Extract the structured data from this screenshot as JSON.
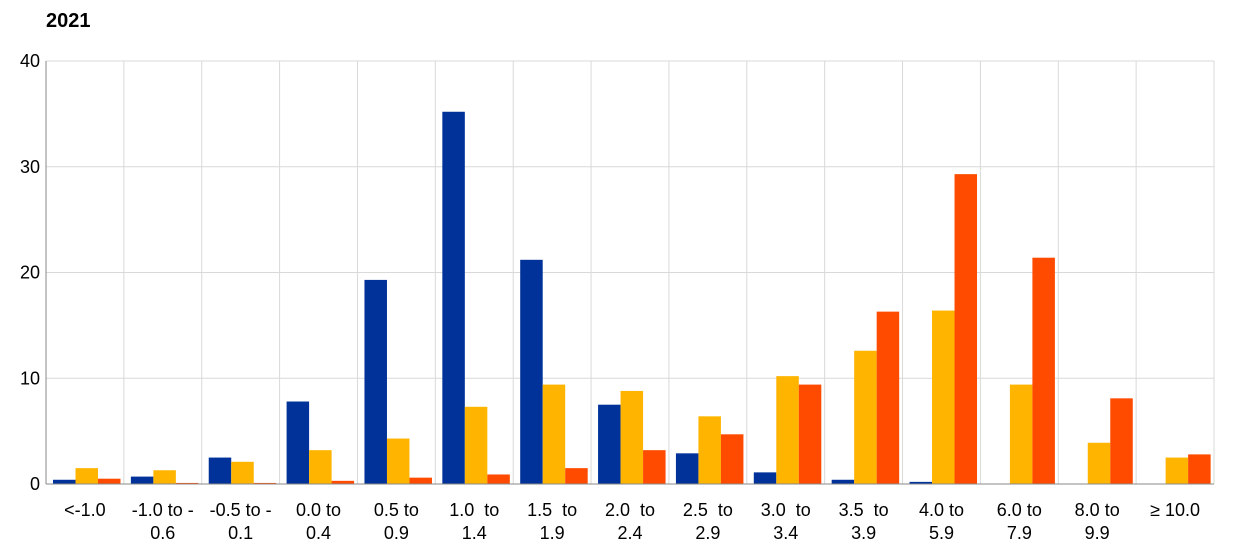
{
  "chart_data": {
    "type": "bar",
    "title": "2021",
    "xlabel": "",
    "ylabel": "",
    "ylim": [
      0,
      40
    ],
    "yticks": [
      "0",
      "10",
      "20",
      "30",
      "40"
    ],
    "grid": true,
    "legend": "none",
    "categories": [
      [
        "<-1.0"
      ],
      [
        "-1.0 to -",
        "0.6"
      ],
      [
        "-0.5 to -",
        "0.1"
      ],
      [
        "0.0 to",
        "0.4"
      ],
      [
        "0.5 to",
        "0.9"
      ],
      [
        "1.0  to",
        "1.4"
      ],
      [
        "1.5  to",
        "1.9"
      ],
      [
        "2.0  to",
        "2.4"
      ],
      [
        "2.5  to",
        "2.9"
      ],
      [
        "3.0  to",
        "3.4"
      ],
      [
        "3.5  to",
        "3.9"
      ],
      [
        "4.0 to",
        "5.9"
      ],
      [
        "6.0 to",
        "7.9"
      ],
      [
        "8.0 to",
        "9.9"
      ],
      [
        "≥ 10.0"
      ]
    ],
    "series": [
      {
        "color": "#003299",
        "values": [
          0.4,
          0.7,
          2.5,
          7.8,
          19.3,
          35.2,
          21.2,
          7.5,
          2.9,
          1.1,
          0.4,
          0.2,
          0,
          0,
          0
        ]
      },
      {
        "color": "#FFB400",
        "values": [
          1.5,
          1.3,
          2.1,
          3.2,
          4.3,
          7.3,
          9.4,
          8.8,
          6.4,
          10.2,
          12.6,
          16.4,
          9.4,
          3.9,
          2.5
        ]
      },
      {
        "color": "#FF4B00",
        "values": [
          0.5,
          0.1,
          0.1,
          0.3,
          0.6,
          0.9,
          1.5,
          3.2,
          4.7,
          9.4,
          16.3,
          29.3,
          21.4,
          8.1,
          2.8
        ]
      }
    ]
  }
}
